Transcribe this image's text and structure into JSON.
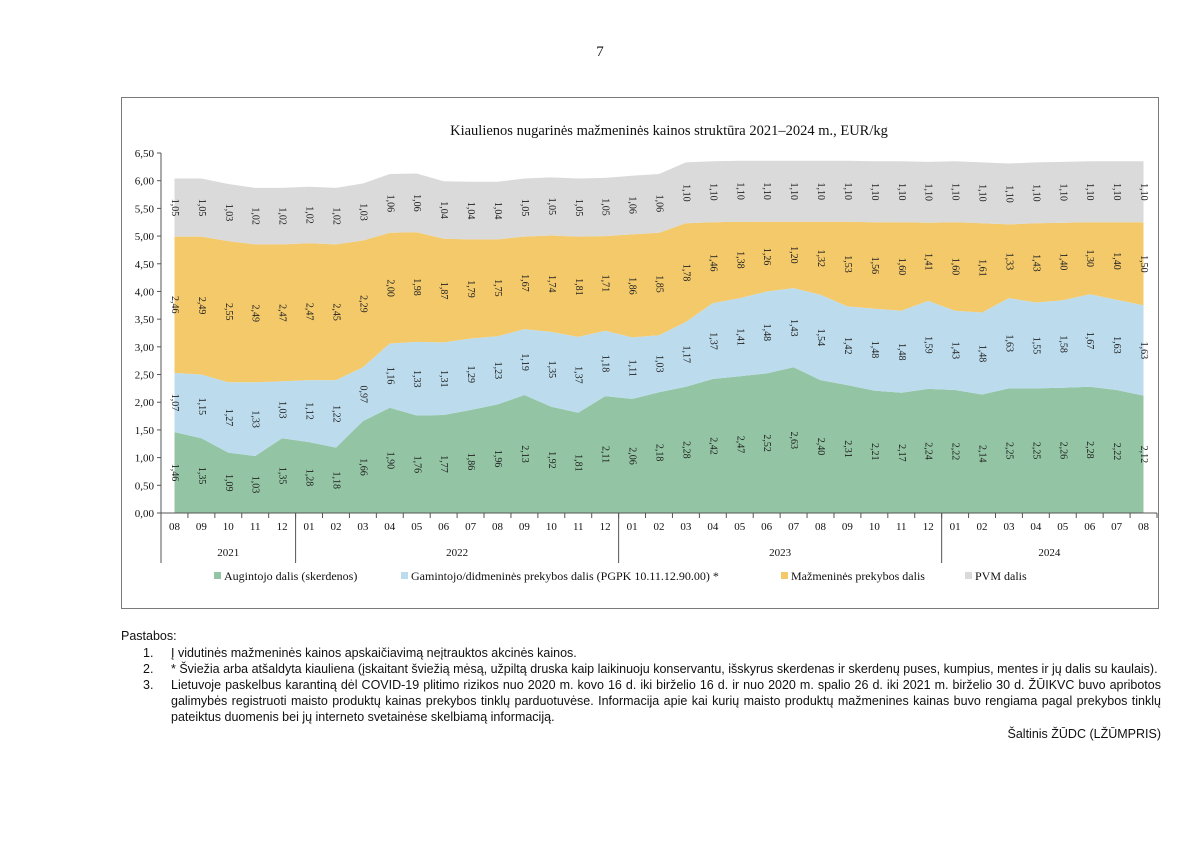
{
  "page_number": "7",
  "chart_data": {
    "type": "area",
    "stacked": true,
    "title": "Kiaulienos nugarinės mažmeninės kainos struktūra 2021–2024 m., EUR/kg",
    "xlabel": "",
    "ylabel": "",
    "ylim": [
      0,
      6.5
    ],
    "yticks": [
      "0,00",
      "0,50",
      "1,00",
      "1,50",
      "2,00",
      "2,50",
      "3,00",
      "3,50",
      "4,00",
      "4,50",
      "5,00",
      "5,50",
      "6,00",
      "6,50"
    ],
    "grid": false,
    "legend": "bottom",
    "months": [
      "08",
      "09",
      "10",
      "11",
      "12",
      "01",
      "02",
      "03",
      "04",
      "05",
      "06",
      "07",
      "08",
      "09",
      "10",
      "11",
      "12",
      "01",
      "02",
      "03",
      "04",
      "05",
      "06",
      "07",
      "08",
      "09",
      "10",
      "11",
      "12",
      "01",
      "02",
      "03",
      "04",
      "05",
      "06",
      "07",
      "08"
    ],
    "years": [
      {
        "label": "2021",
        "count": 5
      },
      {
        "label": "2022",
        "count": 12
      },
      {
        "label": "2023",
        "count": 12
      },
      {
        "label": "2024",
        "count": 8
      }
    ],
    "series": [
      {
        "name": "Augintojo dalis (skerdenos)",
        "color": "#93c5a4",
        "values": [
          1.46,
          1.35,
          1.09,
          1.03,
          1.35,
          1.28,
          1.18,
          1.66,
          1.9,
          1.76,
          1.77,
          1.86,
          1.96,
          2.13,
          1.92,
          1.81,
          2.11,
          2.06,
          2.18,
          2.28,
          2.42,
          2.47,
          2.52,
          2.63,
          2.4,
          2.31,
          2.21,
          2.17,
          2.24,
          2.22,
          2.14,
          2.25,
          2.25,
          2.26,
          2.28,
          2.22,
          2.12
        ],
        "labels": [
          "1,46",
          "1,35",
          "1,09",
          "1,03",
          "1,35",
          "1,28",
          "1,18",
          "1,66",
          "1,90",
          "1,76",
          "1,77",
          "1,86",
          "1,96",
          "2,13",
          "1,92",
          "1,81",
          "2,11",
          "2,06",
          "2,18",
          "2,28",
          "2,42",
          "2,47",
          "2,52",
          "2,63",
          "2,40",
          "2,31",
          "2,21",
          "2,17",
          "2,24",
          "2,22",
          "2,14",
          "2,25",
          "2,25",
          "2,26",
          "2,28",
          "2,22",
          "2,12"
        ]
      },
      {
        "name": "Gamintojo/didmeninės prekybos dalis (PGPK 10.11.12.90.00) *",
        "color": "#bcdcee",
        "values": [
          1.07,
          1.15,
          1.27,
          1.33,
          1.03,
          1.12,
          1.22,
          0.97,
          1.16,
          1.33,
          1.31,
          1.29,
          1.23,
          1.19,
          1.35,
          1.37,
          1.18,
          1.11,
          1.03,
          1.17,
          1.37,
          1.41,
          1.48,
          1.43,
          1.54,
          1.42,
          1.48,
          1.48,
          1.59,
          1.43,
          1.48,
          1.63,
          1.55,
          1.58,
          1.67,
          1.63,
          1.63
        ],
        "labels": [
          "1,07",
          "1,15",
          "1,27",
          "1,33",
          "1,03",
          "1,12",
          "1,22",
          "0,97",
          "1,16",
          "1,33",
          "1,31",
          "1,29",
          "1,23",
          "1,19",
          "1,35",
          "1,37",
          "1,18",
          "1,11",
          "1,03",
          "1,17",
          "1,37",
          "1,41",
          "1,48",
          "1,43",
          "1,54",
          "1,42",
          "1,48",
          "1,48",
          "1,59",
          "1,43",
          "1,48",
          "1,63",
          "1,55",
          "1,58",
          "1,67",
          "1,63",
          "1,63"
        ]
      },
      {
        "name": "Mažmeninės prekybos dalis",
        "color": "#f3c96a",
        "values": [
          2.46,
          2.49,
          2.55,
          2.49,
          2.47,
          2.47,
          2.45,
          2.29,
          2.0,
          1.98,
          1.87,
          1.79,
          1.75,
          1.67,
          1.74,
          1.81,
          1.71,
          1.86,
          1.85,
          1.78,
          1.46,
          1.38,
          1.26,
          1.2,
          1.32,
          1.53,
          1.56,
          1.6,
          1.41,
          1.6,
          1.61,
          1.33,
          1.43,
          1.4,
          1.3,
          1.4,
          1.5
        ],
        "labels": [
          "2,46",
          "2,49",
          "2,55",
          "2,49",
          "2,47",
          "2,47",
          "2,45",
          "2,29",
          "2,00",
          "1,98",
          "1,87",
          "1,79",
          "1,75",
          "1,67",
          "1,74",
          "1,81",
          "1,71",
          "1,86",
          "1,85",
          "1,78",
          "1,46",
          "1,38",
          "1,26",
          "1,20",
          "1,32",
          "1,53",
          "1,56",
          "1,60",
          "1,41",
          "1,60",
          "1,61",
          "1,33",
          "1,43",
          "1,40",
          "1,30",
          "1,40",
          "1,50"
        ]
      },
      {
        "name": "PVM dalis",
        "color": "#dadada",
        "values": [
          1.05,
          1.05,
          1.03,
          1.02,
          1.02,
          1.02,
          1.02,
          1.03,
          1.06,
          1.06,
          1.04,
          1.04,
          1.04,
          1.05,
          1.05,
          1.05,
          1.05,
          1.06,
          1.06,
          1.1,
          1.1,
          1.1,
          1.1,
          1.1,
          1.1,
          1.1,
          1.1,
          1.1,
          1.1,
          1.1,
          1.1,
          1.1,
          1.1,
          1.1,
          1.1,
          1.1,
          1.1
        ],
        "labels": [
          "1,05",
          "1,05",
          "1,03",
          "1,02",
          "1,02",
          "1,02",
          "1,02",
          "1,03",
          "1,06",
          "1,06",
          "1,04",
          "1,04",
          "1,04",
          "1,05",
          "1,05",
          "1,05",
          "1,05",
          "1,06",
          "1,06",
          "1,10",
          "1,10",
          "1,10",
          "1,10",
          "1,10",
          "1,10",
          "1,10",
          "1,10",
          "1,10",
          "1,10",
          "1,10",
          "1,10",
          "1,10",
          "1,10",
          "1,10",
          "1,10",
          "1,10",
          "1,10"
        ]
      }
    ]
  },
  "notes": {
    "header": "Pastabos:",
    "items": [
      {
        "num": "1.",
        "text": "Į vidutinės mažmeninės kainos apskaičiavimą neįtrauktos akcinės kainos."
      },
      {
        "num": "2.",
        "text": "* Šviežia arba atšaldyta kiauliena (įskaitant šviežią mėsą, užpiltą druska kaip laikinuoju konservantu, išskyrus skerdenas ir skerdenų puses, kumpius, mentes ir jų dalis su kaulais)."
      },
      {
        "num": "3.",
        "text": "Lietuvoje paskelbus karantiną dėl COVID-19 plitimo rizikos nuo 2020 m. kovo 16 d. iki birželio 16 d. ir nuo 2020 m. spalio 26 d. iki 2021 m. birželio 30 d. ŽŪIKVC buvo apribotos galimybės registruoti maisto produktų kainas prekybos tinklų parduotuvėse. Informacija apie kai kurių maisto produktų mažmenines kainas buvo rengiama pagal prekybos tinklų pateiktus duomenis bei jų interneto svetainėse skelbiamą informaciją."
      }
    ],
    "source": "Šaltinis ŽŪDC (LŽŪMPRIS)"
  }
}
